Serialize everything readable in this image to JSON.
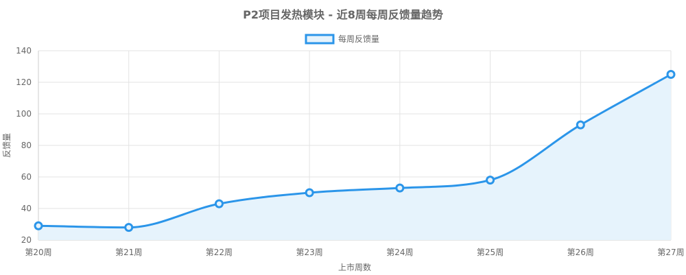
{
  "chart_data": {
    "type": "area",
    "title": "P2项目发热模块 - 近8周每周反馈量趋势",
    "xlabel": "上市周数",
    "ylabel": "反馈量",
    "categories": [
      "第20周",
      "第21周",
      "第22周",
      "第23周",
      "第24周",
      "第25周",
      "第26周",
      "第27周"
    ],
    "series": [
      {
        "name": "每周反馈量",
        "values": [
          29,
          28,
          43,
          50,
          53,
          58,
          93,
          125
        ],
        "line_color": "#2b95e9",
        "fill_color": "#e6f3fc"
      }
    ],
    "ylim": [
      20,
      140
    ],
    "yticks": [
      20,
      40,
      60,
      80,
      100,
      120,
      140
    ],
    "grid": true,
    "legend_position": "top-center"
  }
}
